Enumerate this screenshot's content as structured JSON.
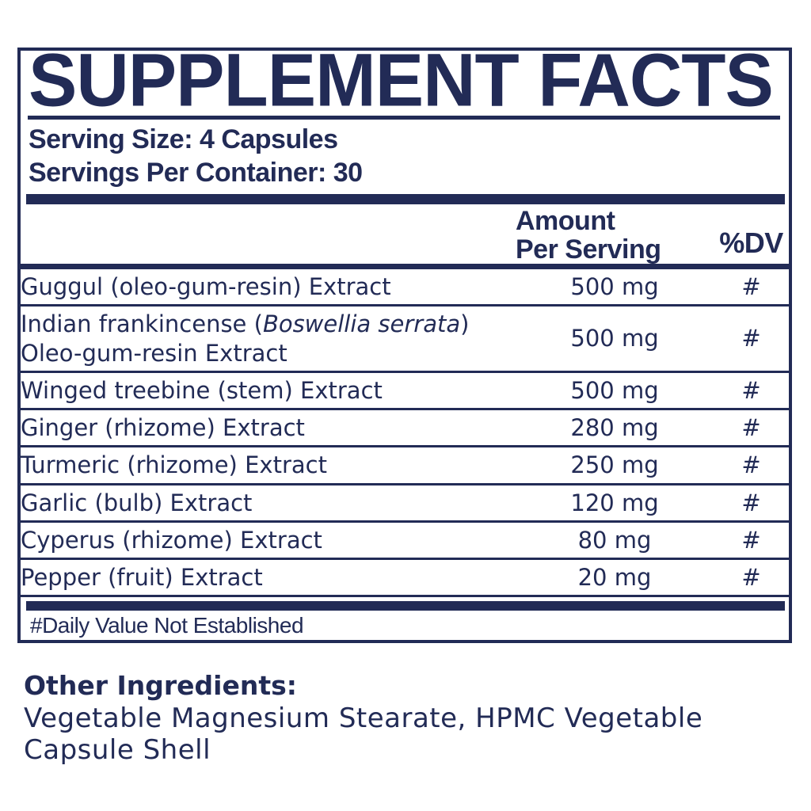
{
  "colors": {
    "navy": "#222b56",
    "background": "#ffffff"
  },
  "panel": {
    "title": "SUPPLEMENT FACTS",
    "serving_size": "Serving Size: 4 Capsules",
    "servings_per_container": "Servings Per Container: 30",
    "header": {
      "amount_line1": "Amount",
      "amount_line2": "Per Serving",
      "dv": "%DV"
    },
    "rows": [
      {
        "name": "Guggul (oleo-gum-resin) Extract",
        "amount": "500 mg",
        "dv": "#"
      },
      {
        "name_prefix": "Indian frankincense (",
        "name_italic": "Boswellia serrata",
        "name_suffix": ") Oleo-gum-resin Extract",
        "amount": "500 mg",
        "dv": "#"
      },
      {
        "name": "Winged treebine (stem) Extract",
        "amount": "500 mg",
        "dv": "#"
      },
      {
        "name": "Ginger (rhizome) Extract",
        "amount": "280 mg",
        "dv": "#"
      },
      {
        "name": "Turmeric (rhizome) Extract",
        "amount": "250 mg",
        "dv": "#"
      },
      {
        "name": "Garlic (bulb) Extract",
        "amount": "120 mg",
        "dv": "#"
      },
      {
        "name": "Cyperus (rhizome) Extract",
        "amount": "80 mg",
        "dv": "#"
      },
      {
        "name": "Pepper (fruit) Extract",
        "amount": "20 mg",
        "dv": "#"
      }
    ],
    "footnote": "#Daily Value Not Established"
  },
  "other_ingredients": {
    "label": "Other Ingredients:",
    "text": "Vegetable Magnesium Stearate, HPMC Vegetable Capsule Shell"
  }
}
